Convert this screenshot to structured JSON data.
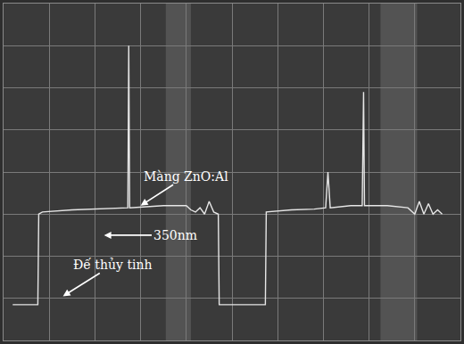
{
  "chart_data": {
    "type": "line",
    "x": [
      0.2,
      0.75,
      0.77,
      0.85,
      1.5,
      2.0,
      2.6,
      2.72,
      2.74,
      2.76,
      3.5,
      4.0,
      4.1,
      4.2,
      4.3,
      4.4,
      4.5,
      4.6,
      4.7,
      4.72,
      5.73,
      5.75,
      6.3,
      6.8,
      7.05,
      7.1,
      7.15,
      7.6,
      7.85,
      7.88,
      7.9,
      8.4,
      8.85,
      9.0,
      9.1,
      9.2,
      9.3,
      9.4,
      9.5,
      9.6
    ],
    "values": [
      0.85,
      0.85,
      3.0,
      3.05,
      3.1,
      3.12,
      3.15,
      3.15,
      7.0,
      3.15,
      3.2,
      3.2,
      3.1,
      3.05,
      3.15,
      3.0,
      3.3,
      3.05,
      3.0,
      0.85,
      0.85,
      3.05,
      3.1,
      3.12,
      3.15,
      4.0,
      3.15,
      3.2,
      3.2,
      5.9,
      3.2,
      3.2,
      3.15,
      3.0,
      3.3,
      3.0,
      3.25,
      3.0,
      3.1,
      3.0
    ],
    "color": "#e6e6e6",
    "xlim": [
      0,
      10
    ],
    "ylim": [
      0,
      8
    ],
    "xticks": [
      0,
      1,
      2,
      3,
      4,
      5,
      6,
      7,
      8,
      9,
      10
    ],
    "yticks": [
      0,
      1,
      2,
      3,
      4,
      5,
      6,
      7,
      8
    ],
    "grid": true,
    "tick_labels": false,
    "annotations": [
      {
        "text": "Màng ZnO:Al",
        "x": 4.0,
        "y": 3.9,
        "ax": 3.0,
        "ay": 3.2
      },
      {
        "text": "350nm",
        "x": 3.75,
        "y": 2.5,
        "ax": 2.2,
        "ay": 2.5
      },
      {
        "text": "Đế thủy tinh",
        "x": 2.4,
        "y": 1.8,
        "ax": 1.3,
        "ay": 1.05
      }
    ]
  }
}
